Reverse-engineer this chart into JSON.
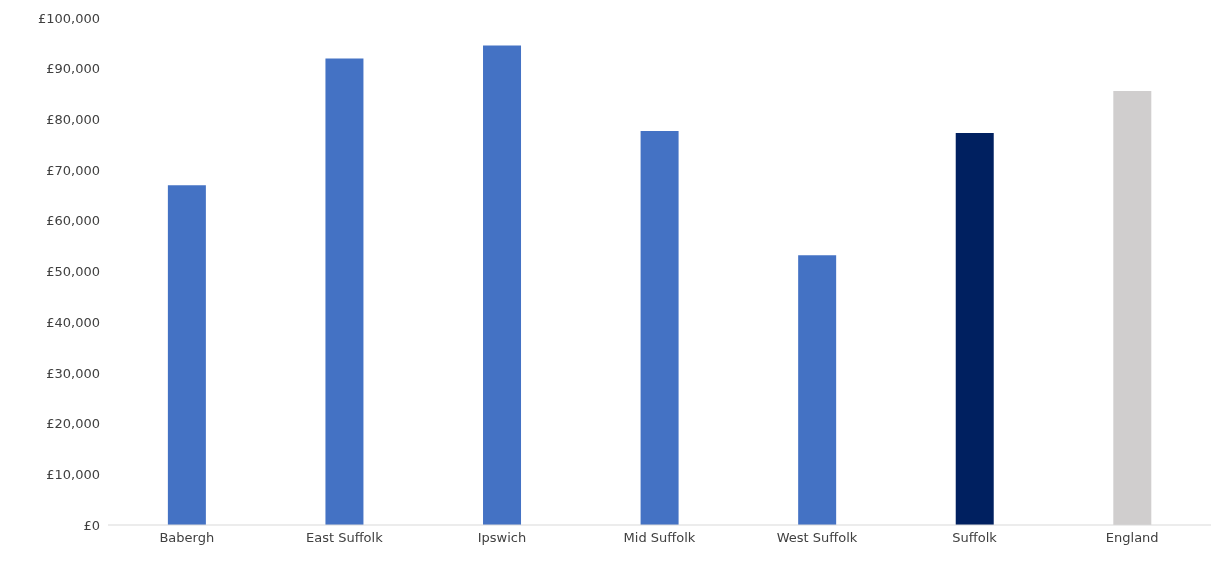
{
  "chart_data": {
    "type": "bar",
    "categories": [
      "Babergh",
      "East Suffolk",
      "Ipswich",
      "Mid Suffolk",
      "West Suffolk",
      "Suffolk",
      "England"
    ],
    "values": [
      67000,
      92000,
      94600,
      77700,
      53200,
      77300,
      85600
    ],
    "colors": [
      "#4472c4",
      "#4472c4",
      "#4472c4",
      "#4472c4",
      "#4472c4",
      "#002060",
      "#d0cece"
    ],
    "ylim": [
      0,
      100000
    ],
    "yticks": [
      {
        "value": 0,
        "label": "£0"
      },
      {
        "value": 10000,
        "label": "£10,000"
      },
      {
        "value": 20000,
        "label": "£20,000"
      },
      {
        "value": 30000,
        "label": "£30,000"
      },
      {
        "value": 40000,
        "label": "£40,000"
      },
      {
        "value": 50000,
        "label": "£50,000"
      },
      {
        "value": 60000,
        "label": "£60,000"
      },
      {
        "value": 70000,
        "label": "£70,000"
      },
      {
        "value": 80000,
        "label": "£80,000"
      },
      {
        "value": 90000,
        "label": "£90,000"
      },
      {
        "value": 100000,
        "label": "£100,000"
      }
    ],
    "grid": false,
    "legend": false
  }
}
